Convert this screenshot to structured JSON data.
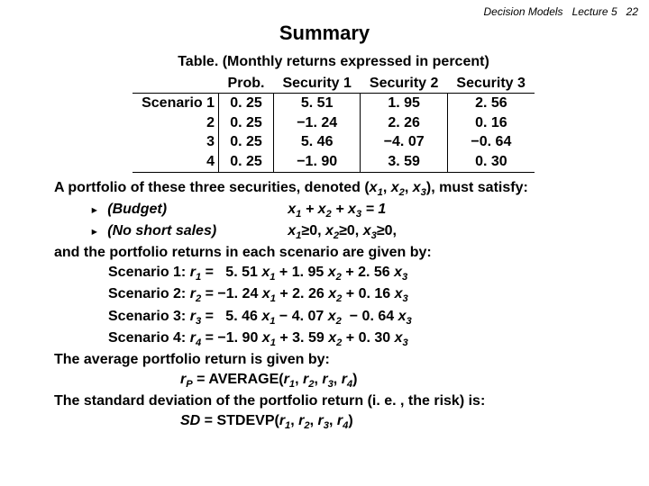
{
  "header": {
    "left": "Decision Models",
    "right": "Lecture 5",
    "page": "22"
  },
  "title": "Summary",
  "table": {
    "caption": "Table. (Monthly returns expressed in percent)",
    "columns": [
      "",
      "Prob.",
      "Security 1",
      "Security 2",
      "Security 3"
    ],
    "row_labels": [
      "Scenario 1",
      "2",
      "3",
      "4"
    ],
    "rows": [
      [
        "0. 25",
        "5. 51",
        "1. 95",
        "2. 56"
      ],
      [
        "0. 25",
        "−1. 24",
        "2. 26",
        "0. 16"
      ],
      [
        "0. 25",
        "5. 46",
        "−4. 07",
        "−0. 64"
      ],
      [
        "0. 25",
        "−1. 90",
        "3. 59",
        "0. 30"
      ]
    ]
  },
  "text": {
    "intro": "A portfolio of these three securities, denoted (",
    "intro_tail": "), must satisfy:",
    "budget_label": "(Budget)",
    "budget_eq": "x₁ + x₂ + x₃ = 1",
    "noshort_label": "(No short sales)",
    "noshort_eq": "x₁≥0, x₂≥0, x₃≥0,",
    "scenarios_intro": "and the portfolio returns in each scenario are given by:",
    "s1": "Scenario 1: r₁ =   5. 51 x₁ + 1. 95 x₂ + 2. 56 x₃",
    "s2": "Scenario 2: r₂ = −1. 24 x₁ + 2. 26 x₂ + 0. 16 x₃",
    "s3": "Scenario 3: r₃ =   5. 46 x₁ − 4. 07 x₂  − 0. 64 x₃",
    "s4": "Scenario 4: r₄ = −1. 90 x₁ + 3. 59 x₂ + 0. 30 x₃",
    "avg_intro": "The average portfolio return is given by:",
    "avg_eq": "r",
    "avg_eq_tail": " = AVERAGE(r₁, r₂, r₃, r₄)",
    "sd_intro": "The standard deviation of the portfolio return (i. e. , the risk) is:",
    "sd_eq": "SD = STDEVP(r₁, r₂, r₃, r₄)"
  },
  "style": {
    "font_size_body": 16,
    "font_size_title": 22,
    "font_size_header": 12,
    "color_text": "#000000",
    "color_bg": "#ffffff",
    "border_color": "#000000"
  }
}
